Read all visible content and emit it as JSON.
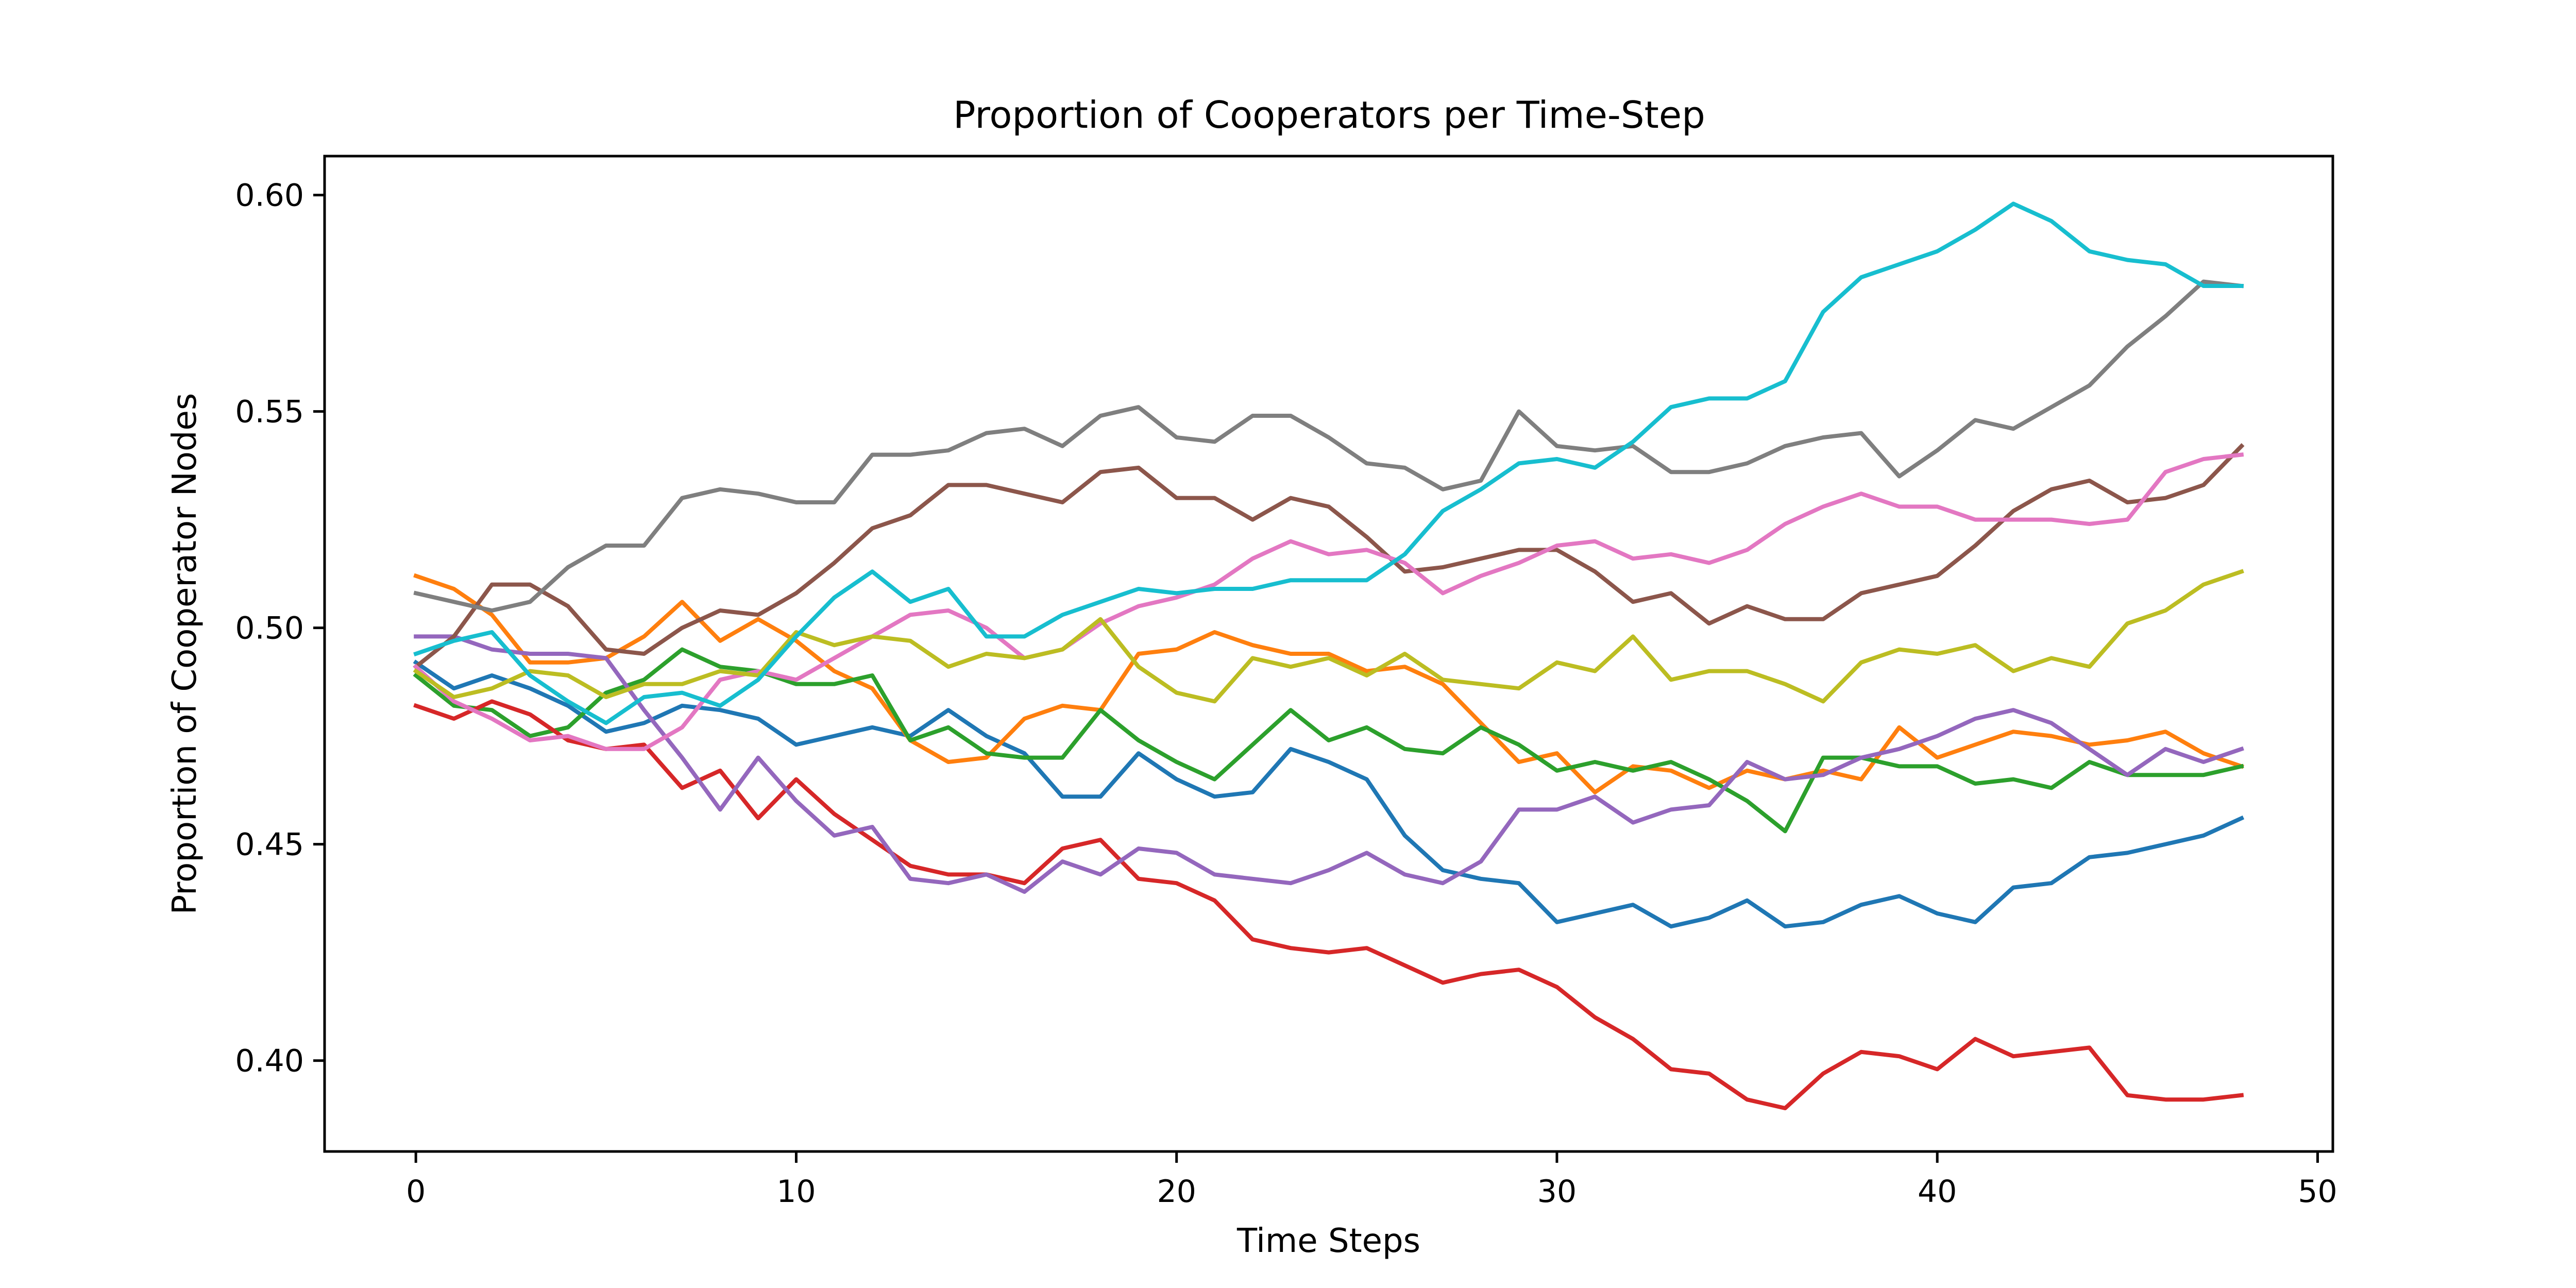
{
  "chart_data": {
    "type": "line",
    "title": "Proportion of Cooperators per Time-Step",
    "xlabel": "Time Steps",
    "ylabel": "Proportion of Cooperator Nodes",
    "xlim": [
      -2.4,
      50.4
    ],
    "ylim": [
      0.379,
      0.609
    ],
    "xticks": [
      0,
      10,
      20,
      30,
      40,
      50
    ],
    "xtick_labels": [
      "0",
      "10",
      "20",
      "30",
      "40",
      "50"
    ],
    "yticks": [
      0.4,
      0.45,
      0.5,
      0.55,
      0.6
    ],
    "ytick_labels": [
      "0.40",
      "0.45",
      "0.50",
      "0.55",
      "0.60"
    ],
    "grid": false,
    "legend": "none",
    "x": [
      0,
      1,
      2,
      3,
      4,
      5,
      6,
      7,
      8,
      9,
      10,
      11,
      12,
      13,
      14,
      15,
      16,
      17,
      18,
      19,
      20,
      21,
      22,
      23,
      24,
      25,
      26,
      27,
      28,
      29,
      30,
      31,
      32,
      33,
      34,
      35,
      36,
      37,
      38,
      39,
      40,
      41,
      42,
      43,
      44,
      45,
      46,
      47,
      48
    ],
    "series": [
      {
        "color": "#1f77b4",
        "values": [
          0.492,
          0.486,
          0.489,
          0.486,
          0.482,
          0.476,
          0.478,
          0.482,
          0.481,
          0.479,
          0.473,
          0.475,
          0.477,
          0.475,
          0.481,
          0.475,
          0.471,
          0.461,
          0.461,
          0.471,
          0.465,
          0.461,
          0.462,
          0.472,
          0.469,
          0.465,
          0.452,
          0.444,
          0.442,
          0.441,
          0.432,
          0.434,
          0.436,
          0.431,
          0.433,
          0.437,
          0.431,
          0.432,
          0.436,
          0.438,
          0.434,
          0.432,
          0.44,
          0.441,
          0.447,
          0.448,
          0.45,
          0.452,
          0.456
        ]
      },
      {
        "color": "#ff7f0e",
        "values": [
          0.512,
          0.509,
          0.503,
          0.492,
          0.492,
          0.493,
          0.498,
          0.506,
          0.497,
          0.502,
          0.497,
          0.49,
          0.486,
          0.474,
          0.469,
          0.47,
          0.479,
          0.482,
          0.481,
          0.494,
          0.495,
          0.499,
          0.496,
          0.494,
          0.494,
          0.49,
          0.491,
          0.487,
          0.478,
          0.469,
          0.471,
          0.462,
          0.468,
          0.467,
          0.463,
          0.467,
          0.465,
          0.467,
          0.465,
          0.477,
          0.47,
          0.473,
          0.476,
          0.475,
          0.473,
          0.474,
          0.476,
          0.471,
          0.468
        ]
      },
      {
        "color": "#2ca02c",
        "values": [
          0.489,
          0.482,
          0.481,
          0.475,
          0.477,
          0.485,
          0.488,
          0.495,
          0.491,
          0.49,
          0.487,
          0.487,
          0.489,
          0.474,
          0.477,
          0.471,
          0.47,
          0.47,
          0.481,
          0.474,
          0.469,
          0.465,
          0.473,
          0.481,
          0.474,
          0.477,
          0.472,
          0.471,
          0.477,
          0.473,
          0.467,
          0.469,
          0.467,
          0.469,
          0.465,
          0.46,
          0.453,
          0.47,
          0.47,
          0.468,
          0.468,
          0.464,
          0.465,
          0.463,
          0.469,
          0.466,
          0.466,
          0.466,
          0.468
        ]
      },
      {
        "color": "#d62728",
        "values": [
          0.482,
          0.479,
          0.483,
          0.48,
          0.474,
          0.472,
          0.473,
          0.463,
          0.467,
          0.456,
          0.465,
          0.457,
          0.451,
          0.445,
          0.443,
          0.443,
          0.441,
          0.449,
          0.451,
          0.442,
          0.441,
          0.437,
          0.428,
          0.426,
          0.425,
          0.426,
          0.422,
          0.418,
          0.42,
          0.421,
          0.417,
          0.41,
          0.405,
          0.398,
          0.397,
          0.391,
          0.389,
          0.397,
          0.402,
          0.401,
          0.398,
          0.405,
          0.401,
          0.402,
          0.403,
          0.392,
          0.391,
          0.391,
          0.392
        ]
      },
      {
        "color": "#9467bd",
        "values": [
          0.498,
          0.498,
          0.495,
          0.494,
          0.494,
          0.493,
          0.481,
          0.47,
          0.458,
          0.47,
          0.46,
          0.452,
          0.454,
          0.442,
          0.441,
          0.443,
          0.439,
          0.446,
          0.443,
          0.449,
          0.448,
          0.443,
          0.442,
          0.441,
          0.444,
          0.448,
          0.443,
          0.441,
          0.446,
          0.458,
          0.458,
          0.461,
          0.455,
          0.458,
          0.459,
          0.469,
          0.465,
          0.466,
          0.47,
          0.472,
          0.475,
          0.479,
          0.481,
          0.478,
          0.472,
          0.466,
          0.472,
          0.469,
          0.472
        ]
      },
      {
        "color": "#8c564b",
        "values": [
          0.491,
          0.498,
          0.51,
          0.51,
          0.505,
          0.495,
          0.494,
          0.5,
          0.504,
          0.503,
          0.508,
          0.515,
          0.523,
          0.526,
          0.533,
          0.533,
          0.531,
          0.529,
          0.536,
          0.537,
          0.53,
          0.53,
          0.525,
          0.53,
          0.528,
          0.521,
          0.513,
          0.514,
          0.516,
          0.518,
          0.518,
          0.513,
          0.506,
          0.508,
          0.501,
          0.505,
          0.502,
          0.502,
          0.508,
          0.51,
          0.512,
          0.519,
          0.527,
          0.532,
          0.534,
          0.529,
          0.53,
          0.533,
          0.542
        ]
      },
      {
        "color": "#e377c2",
        "values": [
          0.491,
          0.483,
          0.479,
          0.474,
          0.475,
          0.472,
          0.472,
          0.477,
          0.488,
          0.49,
          0.488,
          0.493,
          0.498,
          0.503,
          0.504,
          0.5,
          0.493,
          0.495,
          0.501,
          0.505,
          0.507,
          0.51,
          0.516,
          0.52,
          0.517,
          0.518,
          0.515,
          0.508,
          0.512,
          0.515,
          0.519,
          0.52,
          0.516,
          0.517,
          0.515,
          0.518,
          0.524,
          0.528,
          0.531,
          0.528,
          0.528,
          0.525,
          0.525,
          0.525,
          0.524,
          0.525,
          0.536,
          0.539,
          0.54
        ]
      },
      {
        "color": "#7f7f7f",
        "values": [
          0.508,
          0.506,
          0.504,
          0.506,
          0.514,
          0.519,
          0.519,
          0.53,
          0.532,
          0.531,
          0.529,
          0.529,
          0.54,
          0.54,
          0.541,
          0.545,
          0.546,
          0.542,
          0.549,
          0.551,
          0.544,
          0.543,
          0.549,
          0.549,
          0.544,
          0.538,
          0.537,
          0.532,
          0.534,
          0.55,
          0.542,
          0.541,
          0.542,
          0.536,
          0.536,
          0.538,
          0.542,
          0.544,
          0.545,
          0.535,
          0.541,
          0.548,
          0.546,
          0.551,
          0.556,
          0.565,
          0.572,
          0.58,
          0.579
        ]
      },
      {
        "color": "#bcbd22",
        "values": [
          0.49,
          0.484,
          0.486,
          0.49,
          0.489,
          0.484,
          0.487,
          0.487,
          0.49,
          0.489,
          0.499,
          0.496,
          0.498,
          0.497,
          0.491,
          0.494,
          0.493,
          0.495,
          0.502,
          0.491,
          0.485,
          0.483,
          0.493,
          0.491,
          0.493,
          0.489,
          0.494,
          0.488,
          0.487,
          0.486,
          0.492,
          0.49,
          0.498,
          0.488,
          0.49,
          0.49,
          0.487,
          0.483,
          0.492,
          0.495,
          0.494,
          0.496,
          0.49,
          0.493,
          0.491,
          0.501,
          0.504,
          0.51,
          0.513
        ]
      },
      {
        "color": "#17becf",
        "values": [
          0.494,
          0.497,
          0.499,
          0.489,
          0.483,
          0.478,
          0.484,
          0.485,
          0.482,
          0.488,
          0.498,
          0.507,
          0.513,
          0.506,
          0.509,
          0.498,
          0.498,
          0.503,
          0.506,
          0.509,
          0.508,
          0.509,
          0.509,
          0.511,
          0.511,
          0.511,
          0.517,
          0.527,
          0.532,
          0.538,
          0.539,
          0.537,
          0.543,
          0.551,
          0.553,
          0.553,
          0.557,
          0.573,
          0.581,
          0.584,
          0.587,
          0.592,
          0.598,
          0.594,
          0.587,
          0.585,
          0.584,
          0.579,
          0.579
        ]
      }
    ]
  }
}
